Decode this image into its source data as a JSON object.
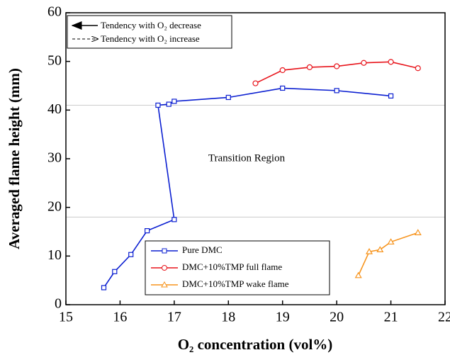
{
  "chart_data": {
    "type": "line",
    "xlabel": "O₂ concentration (vol%)",
    "ylabel": "Averaged flame height (mm)",
    "xlim": [
      15,
      22
    ],
    "xticks": [
      15,
      16,
      17,
      18,
      19,
      20,
      21,
      22
    ],
    "ylim": [
      0,
      60
    ],
    "yticks": [
      0,
      10,
      20,
      30,
      40,
      50,
      60
    ],
    "reference_lines": [
      41,
      18
    ],
    "annotations": [
      "Transition Region",
      "Tendency with O₂ decrease",
      "Tendency with O₂ increase"
    ],
    "legend_position": "lower right",
    "series": [
      {
        "name": "Pure DMC",
        "color": "#0b1fd1",
        "marker": "square",
        "x": [
          15.7,
          15.9,
          16.2,
          16.5,
          17.0,
          16.7,
          16.9,
          17.0,
          18,
          19,
          20,
          21
        ],
        "values": [
          3.5,
          6.8,
          10.3,
          15.2,
          17.5,
          41,
          41.2,
          41.8,
          42.6,
          44.5,
          44,
          42.9
        ]
      },
      {
        "name": "DMC+10%TMP full flame",
        "color": "#e8141b",
        "marker": "circle",
        "x": [
          18.5,
          19,
          19.5,
          20,
          20.5,
          21,
          21.5
        ],
        "values": [
          45.5,
          48.2,
          48.8,
          49,
          49.7,
          49.9,
          48.6
        ]
      },
      {
        "name": "DMC+10%TMP wake flame",
        "color": "#f7941d",
        "marker": "triangle",
        "x": [
          20.4,
          20.6,
          20.8,
          21.0,
          21.5
        ],
        "values": [
          6,
          10.9,
          11.3,
          12.9,
          14.8
        ]
      }
    ]
  }
}
